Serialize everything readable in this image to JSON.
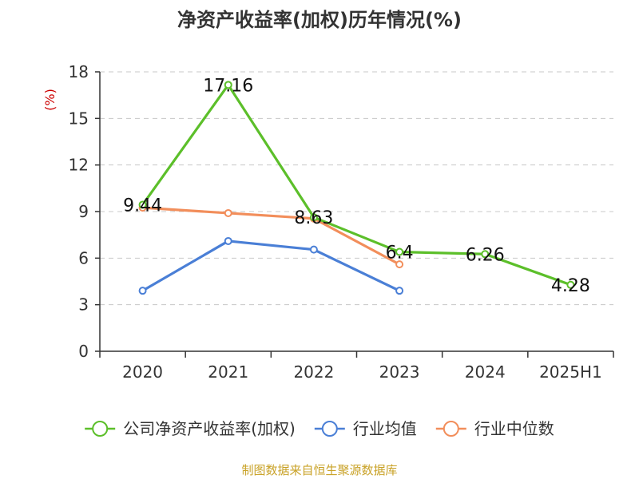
{
  "chart_data": {
    "type": "line",
    "title": "净资产收益率(加权)历年情况(%)",
    "ylabel": "(%)",
    "xlabel": "",
    "categories": [
      "2020",
      "2021",
      "2022",
      "2023",
      "2024",
      "2025H1"
    ],
    "ylim": [
      0,
      18
    ],
    "yticks": [
      0,
      3,
      6,
      9,
      12,
      15,
      18
    ],
    "grid": true,
    "legend_position": "bottom",
    "series": [
      {
        "name": "公司净资产收益率(加权)",
        "color": "#5cbf2a",
        "values": [
          9.44,
          17.16,
          8.63,
          6.4,
          6.26,
          4.28
        ],
        "data_labels": [
          "9.44",
          "17.16",
          "8.63",
          "6.4",
          "6.26",
          "4.28"
        ]
      },
      {
        "name": "行业均值",
        "color": "#4a7fd6",
        "values": [
          3.9,
          7.1,
          6.55,
          3.9,
          null,
          null
        ]
      },
      {
        "name": "行业中位数",
        "color": "#f28e5b",
        "values": [
          9.25,
          8.9,
          8.55,
          5.6,
          null,
          null
        ]
      }
    ]
  },
  "footer": {
    "source": "制图数据来自恒生聚源数据库"
  }
}
